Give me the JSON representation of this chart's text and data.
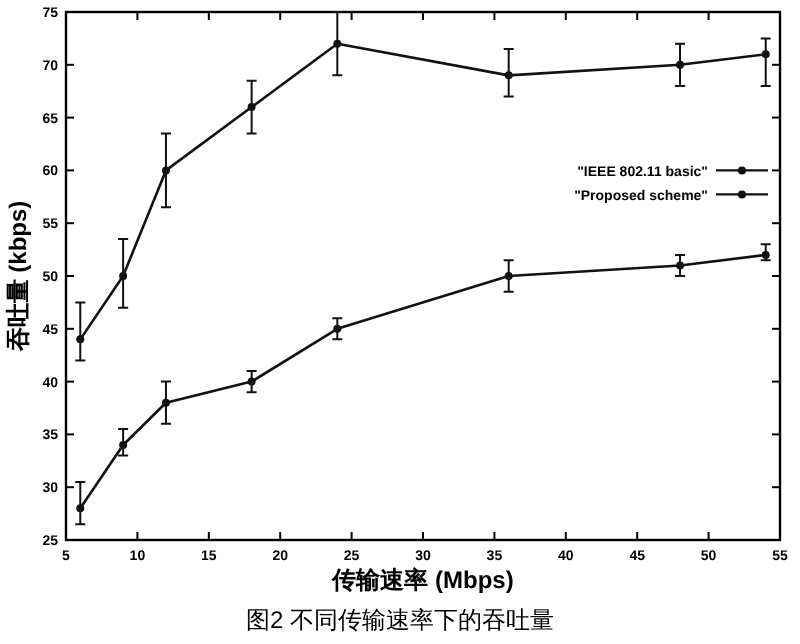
{
  "chart_data": {
    "type": "line",
    "title": "图2 不同传输速率下的吞吐量",
    "xlabel": "传输速率 (Mbps)",
    "ylabel": "吞吐量 (kbps)",
    "xlim": [
      5,
      55
    ],
    "xticks": [
      5,
      10,
      15,
      20,
      25,
      30,
      35,
      40,
      45,
      50,
      55
    ],
    "ylim": [
      25,
      75
    ],
    "yticks": [
      25,
      30,
      35,
      40,
      45,
      50,
      55,
      60,
      65,
      70,
      75
    ],
    "grid": false,
    "legend": "right",
    "marker": "circle",
    "line_style": "solid",
    "series": [
      {
        "name": "\"IEEE 802.11 basic\"",
        "color": "#111111",
        "x": [
          6,
          9,
          12,
          18,
          24,
          36,
          48,
          54
        ],
        "values": [
          28,
          34,
          38,
          40,
          45,
          50,
          51,
          52
        ],
        "errors": [
          [
            26.5,
            30.5
          ],
          [
            33,
            35.5
          ],
          [
            36,
            40
          ],
          [
            39,
            41
          ],
          [
            44,
            46
          ],
          [
            48.5,
            51.5
          ],
          [
            50,
            52
          ],
          [
            51.5,
            53
          ]
        ]
      },
      {
        "name": "\"Proposed scheme\"",
        "color": "#111111",
        "x": [
          6,
          9,
          12,
          18,
          24,
          36,
          48,
          54
        ],
        "values": [
          44,
          50,
          60,
          66,
          72,
          69,
          70,
          71
        ],
        "errors": [
          [
            42,
            47.5
          ],
          [
            47,
            53.5
          ],
          [
            56.5,
            63.5
          ],
          [
            63.5,
            68.5
          ],
          [
            69,
            75
          ],
          [
            67,
            71.5
          ],
          [
            68,
            72
          ],
          [
            68,
            72.5
          ]
        ]
      }
    ]
  }
}
